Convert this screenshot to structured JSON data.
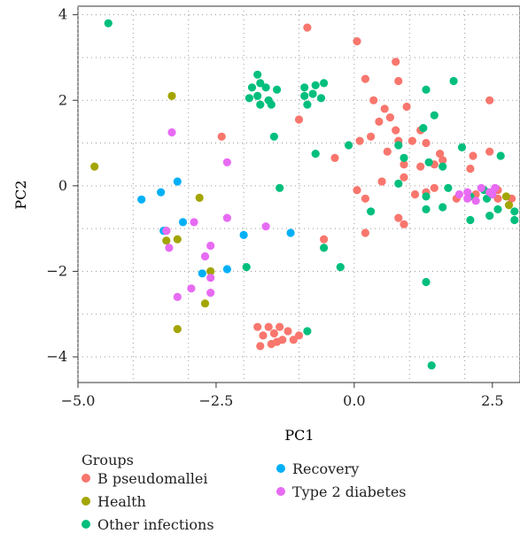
{
  "chart_data": {
    "type": "scatter",
    "title": "",
    "xlabel": "PC1",
    "ylabel": "PC2",
    "xlim": [
      -5.0,
      3.0
    ],
    "ylim": [
      -4.6,
      4.2
    ],
    "xticks": [
      -5.0,
      -2.5,
      0.0,
      2.5
    ],
    "xtick_labels": [
      "−5.0",
      "−2.5",
      "0.0",
      "2.5"
    ],
    "yticks": [
      4,
      2,
      0,
      -2,
      -4
    ],
    "ytick_labels": [
      "4",
      "2",
      "0",
      "−2",
      "−4"
    ],
    "grid": true,
    "legend_title": "Groups",
    "legend_position": "bottom",
    "series": [
      {
        "name": "B pseudomallei",
        "color": "#F8766D",
        "points": [
          [
            -0.85,
            3.7
          ],
          [
            0.05,
            3.38
          ],
          [
            0.75,
            2.9
          ],
          [
            0.2,
            2.5
          ],
          [
            0.8,
            2.45
          ],
          [
            0.35,
            2.0
          ],
          [
            2.45,
            2.0
          ],
          [
            0.55,
            1.8
          ],
          [
            0.95,
            1.85
          ],
          [
            0.65,
            1.6
          ],
          [
            0.45,
            1.5
          ],
          [
            -1.0,
            1.55
          ],
          [
            1.05,
            1.05
          ],
          [
            1.2,
            1.3
          ],
          [
            0.75,
            1.3
          ],
          [
            0.3,
            1.15
          ],
          [
            0.1,
            1.05
          ],
          [
            0.8,
            1.05
          ],
          [
            1.3,
            1.0
          ],
          [
            1.55,
            0.75
          ],
          [
            1.6,
            0.6
          ],
          [
            2.15,
            0.7
          ],
          [
            2.45,
            0.8
          ],
          [
            -0.35,
            0.65
          ],
          [
            0.6,
            0.8
          ],
          [
            0.9,
            0.5
          ],
          [
            1.2,
            0.45
          ],
          [
            1.45,
            0.5
          ],
          [
            2.1,
            0.4
          ],
          [
            -2.4,
            1.15
          ],
          [
            0.5,
            0.1
          ],
          [
            0.9,
            0.2
          ],
          [
            1.1,
            -0.2
          ],
          [
            1.3,
            -0.15
          ],
          [
            1.45,
            -0.05
          ],
          [
            1.85,
            -0.3
          ],
          [
            2.2,
            -0.2
          ],
          [
            2.6,
            -0.3
          ],
          [
            2.6,
            -0.1
          ],
          [
            2.85,
            -0.3
          ],
          [
            0.2,
            -0.3
          ],
          [
            0.8,
            -0.75
          ],
          [
            0.9,
            -0.9
          ],
          [
            0.2,
            -1.1
          ],
          [
            0.05,
            -0.1
          ],
          [
            -0.55,
            -1.25
          ],
          [
            -1.75,
            -3.3
          ],
          [
            -1.55,
            -3.3
          ],
          [
            -1.35,
            -3.3
          ],
          [
            -1.2,
            -3.4
          ],
          [
            -1.65,
            -3.5
          ],
          [
            -1.45,
            -3.45
          ],
          [
            -1.3,
            -3.6
          ],
          [
            -1.7,
            -3.75
          ],
          [
            -1.5,
            -3.7
          ],
          [
            -1.1,
            -3.6
          ],
          [
            -1.4,
            -3.65
          ],
          [
            -1.0,
            -3.5
          ]
        ]
      },
      {
        "name": "Health",
        "color": "#A3A500",
        "points": [
          [
            -3.3,
            2.1
          ],
          [
            -4.7,
            0.45
          ],
          [
            -2.8,
            -0.28
          ],
          [
            -3.4,
            -1.05
          ],
          [
            -3.2,
            -1.25
          ],
          [
            -2.6,
            -2.0
          ],
          [
            -2.7,
            -2.75
          ],
          [
            -3.2,
            -3.35
          ],
          [
            -3.4,
            -1.28
          ],
          [
            2.8,
            -0.45
          ],
          [
            2.75,
            -0.25
          ]
        ]
      },
      {
        "name": "Other infections",
        "color": "#00BF7D",
        "points": [
          [
            -4.45,
            3.8
          ],
          [
            -1.75,
            2.6
          ],
          [
            -1.7,
            2.4
          ],
          [
            -1.85,
            2.3
          ],
          [
            -1.6,
            2.3
          ],
          [
            -1.4,
            2.25
          ],
          [
            -1.75,
            2.1
          ],
          [
            -1.9,
            2.05
          ],
          [
            -1.55,
            2.0
          ],
          [
            -1.7,
            1.9
          ],
          [
            -1.5,
            1.9
          ],
          [
            -0.9,
            2.3
          ],
          [
            -0.7,
            2.35
          ],
          [
            -0.55,
            2.4
          ],
          [
            -0.9,
            2.1
          ],
          [
            -0.75,
            2.15
          ],
          [
            -0.6,
            2.05
          ],
          [
            -0.85,
            1.9
          ],
          [
            1.3,
            2.25
          ],
          [
            1.8,
            2.45
          ],
          [
            1.45,
            1.65
          ],
          [
            1.25,
            1.35
          ],
          [
            -0.7,
            0.75
          ],
          [
            -0.1,
            0.95
          ],
          [
            0.8,
            0.95
          ],
          [
            0.9,
            0.65
          ],
          [
            1.95,
            0.9
          ],
          [
            1.35,
            0.55
          ],
          [
            1.6,
            0.45
          ],
          [
            2.65,
            0.7
          ],
          [
            0.8,
            0.05
          ],
          [
            1.3,
            -0.25
          ],
          [
            1.7,
            -0.05
          ],
          [
            2.4,
            -0.3
          ],
          [
            1.3,
            -0.55
          ],
          [
            1.6,
            -0.5
          ],
          [
            2.1,
            -0.25
          ],
          [
            2.35,
            -0.1
          ],
          [
            2.6,
            -0.55
          ],
          [
            2.45,
            -0.7
          ],
          [
            2.9,
            -0.6
          ],
          [
            2.9,
            -0.8
          ],
          [
            2.1,
            -0.8
          ],
          [
            -1.35,
            -0.05
          ],
          [
            0.3,
            -0.6
          ],
          [
            -0.55,
            -1.45
          ],
          [
            -1.95,
            -1.9
          ],
          [
            -0.25,
            -1.9
          ],
          [
            1.3,
            -2.25
          ],
          [
            -0.85,
            -3.4
          ],
          [
            1.4,
            -4.2
          ],
          [
            -1.45,
            1.15
          ]
        ]
      },
      {
        "name": "Recovery",
        "color": "#00B0F6",
        "points": [
          [
            -3.85,
            -0.32
          ],
          [
            -3.5,
            -0.15
          ],
          [
            -3.2,
            0.1
          ],
          [
            -3.1,
            -0.85
          ],
          [
            -3.45,
            -1.05
          ],
          [
            -2.0,
            -1.15
          ],
          [
            -1.15,
            -1.1
          ],
          [
            -2.3,
            -1.95
          ],
          [
            -2.75,
            -2.05
          ]
        ]
      },
      {
        "name": "Type 2 diabetes",
        "color": "#E76BF3",
        "points": [
          [
            -3.3,
            1.25
          ],
          [
            -2.3,
            0.55
          ],
          [
            -2.9,
            -0.85
          ],
          [
            -3.4,
            -1.05
          ],
          [
            -2.3,
            -0.75
          ],
          [
            -1.6,
            -0.95
          ],
          [
            -3.35,
            -1.45
          ],
          [
            -2.6,
            -1.4
          ],
          [
            -2.7,
            -1.65
          ],
          [
            -2.6,
            -2.15
          ],
          [
            -2.6,
            -2.5
          ],
          [
            -3.2,
            -2.6
          ],
          [
            -2.95,
            -2.4
          ],
          [
            1.9,
            -0.2
          ],
          [
            2.05,
            -0.15
          ],
          [
            2.2,
            -0.35
          ],
          [
            2.3,
            -0.05
          ],
          [
            2.45,
            -0.15
          ],
          [
            2.5,
            -0.2
          ],
          [
            2.55,
            -0.05
          ],
          [
            2.05,
            -0.3
          ]
        ]
      }
    ]
  }
}
